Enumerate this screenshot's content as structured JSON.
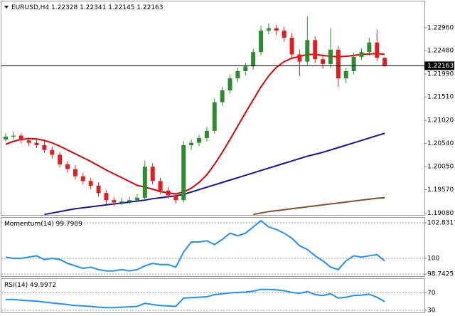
{
  "chart_data": [
    {
      "type": "candlestick",
      "title": "EURUSD,H4",
      "up_color": "#2e8b2e",
      "down_color": "#e02020",
      "open": [
        1.2062,
        1.2068,
        1.207,
        1.206,
        1.2055,
        1.205,
        1.204,
        1.203,
        1.201,
        1.2,
        1.1985,
        1.1975,
        1.1965,
        1.195,
        1.1935,
        1.193,
        1.1932,
        1.1935,
        1.194,
        1.2005,
        1.1975,
        1.1955,
        1.1945,
        1.1935,
        1.205,
        1.2055,
        1.2065,
        1.208,
        1.214,
        1.2165,
        1.219,
        1.2205,
        1.2215,
        1.2245,
        1.229,
        1.2295,
        1.229,
        1.2275,
        1.224,
        1.2225,
        1.227,
        1.223,
        1.222,
        1.225,
        1.219,
        1.2205,
        1.2235,
        1.2245,
        1.2265,
        1.22328
      ],
      "high": [
        1.2075,
        1.2078,
        1.2075,
        1.2066,
        1.2063,
        1.2058,
        1.2047,
        1.2036,
        1.2017,
        1.2008,
        1.1992,
        1.1982,
        1.1972,
        1.1956,
        1.1941,
        1.194,
        1.1942,
        1.1948,
        1.2018,
        1.2012,
        1.1982,
        1.1962,
        1.195,
        1.2058,
        1.2062,
        1.2072,
        1.2088,
        1.2148,
        1.2172,
        1.2198,
        1.2212,
        1.2222,
        1.2252,
        1.23,
        1.2305,
        1.2302,
        1.2298,
        1.2285,
        1.225,
        1.232,
        1.2278,
        1.2238,
        1.2295,
        1.2258,
        1.2212,
        1.2243,
        1.2253,
        1.2275,
        1.2292,
        1.22341
      ],
      "low": [
        1.2058,
        1.2062,
        1.2054,
        1.2048,
        1.2044,
        1.2034,
        1.2022,
        1.2003,
        1.1992,
        1.1978,
        1.1968,
        1.1957,
        1.1942,
        1.1926,
        1.1922,
        1.1925,
        1.1927,
        1.193,
        1.1936,
        1.1968,
        1.1948,
        1.1938,
        1.1928,
        1.193,
        1.204,
        1.2048,
        1.2058,
        1.2074,
        1.2132,
        1.2158,
        1.2182,
        1.2196,
        1.2208,
        1.2238,
        1.2282,
        1.228,
        1.2266,
        1.2232,
        1.2195,
        1.2218,
        1.2222,
        1.221,
        1.2212,
        1.2172,
        1.218,
        1.2198,
        1.2228,
        1.2238,
        1.2226,
        1.22145
      ],
      "close": [
        1.2068,
        1.207,
        1.206,
        1.2055,
        1.205,
        1.204,
        1.203,
        1.201,
        1.2,
        1.1985,
        1.1975,
        1.1965,
        1.195,
        1.1935,
        1.193,
        1.1932,
        1.1935,
        1.194,
        1.2005,
        1.1975,
        1.1955,
        1.1945,
        1.1935,
        1.205,
        1.2055,
        1.2065,
        1.208,
        1.214,
        1.2165,
        1.219,
        1.2205,
        1.2215,
        1.2245,
        1.229,
        1.2295,
        1.229,
        1.2275,
        1.224,
        1.2225,
        1.227,
        1.223,
        1.222,
        1.225,
        1.219,
        1.2205,
        1.2235,
        1.2245,
        1.2265,
        1.2233,
        1.22163
      ],
      "lines": [
        {
          "color": "#e00000",
          "values": [
            1.2052,
            1.2058,
            1.2062,
            1.2064,
            1.2063,
            1.206,
            1.2055,
            1.2048,
            1.204,
            1.2032,
            1.2024,
            1.2016,
            1.2007,
            1.1998,
            1.199,
            1.1982,
            1.1974,
            1.1966,
            1.1962,
            1.1958,
            1.1953,
            1.195,
            1.1948,
            1.1952,
            1.196,
            1.1972,
            1.1988,
            1.201,
            1.2035,
            1.2062,
            1.209,
            1.2118,
            1.2145,
            1.2172,
            1.2195,
            1.2213,
            1.2225,
            1.2232,
            1.2236,
            1.224,
            1.224,
            1.2238,
            1.2236,
            1.2235,
            1.2236,
            1.2238,
            1.224,
            1.2241,
            1.2242,
            1.224
          ]
        },
        {
          "color": "#1414a0",
          "values": [
            null,
            null,
            null,
            null,
            null,
            1.1905,
            1.1908,
            1.1911,
            1.1914,
            1.1917,
            1.1919,
            1.1921,
            1.1923,
            1.1925,
            1.1927,
            1.1929,
            1.1931,
            1.1933,
            1.1935,
            1.1938,
            1.194,
            1.1942,
            1.1944,
            1.1947,
            1.1952,
            1.1957,
            1.1962,
            1.1967,
            1.1972,
            1.1977,
            1.1982,
            1.1987,
            1.1992,
            1.1997,
            1.2002,
            1.2007,
            1.2012,
            1.2017,
            1.2022,
            1.2027,
            1.2031,
            1.2035,
            1.204,
            1.2045,
            1.205,
            1.2055,
            1.206,
            1.2065,
            1.207,
            1.2075
          ]
        },
        {
          "color": "#8b4a2b",
          "values": [
            null,
            null,
            null,
            null,
            null,
            null,
            null,
            null,
            null,
            null,
            null,
            null,
            null,
            null,
            null,
            null,
            null,
            null,
            null,
            null,
            null,
            null,
            null,
            null,
            null,
            null,
            null,
            null,
            null,
            null,
            null,
            null,
            1.1905,
            1.1908,
            1.1911,
            1.1913,
            1.1915,
            1.1917,
            1.1919,
            1.1921,
            1.1923,
            1.1925,
            1.1927,
            1.1929,
            1.1931,
            1.1933,
            1.1935,
            1.1937,
            1.1939,
            1.194
          ]
        }
      ],
      "ylim": [
        1.1904,
        1.2351
      ],
      "yticks": [
        {
          "value": 1.2296,
          "label": "1.22960"
        },
        {
          "value": 1.2248,
          "label": "1.22480"
        },
        {
          "value": 1.2199,
          "label": "1.21990"
        },
        {
          "value": 1.2151,
          "label": "1.21510"
        },
        {
          "value": 1.2102,
          "label": "1.21020"
        },
        {
          "value": 1.2054,
          "label": "1.20540"
        },
        {
          "value": 1.2005,
          "label": "1.20050"
        },
        {
          "value": 1.1957,
          "label": "1.19570"
        },
        {
          "value": 1.1908,
          "label": "1.19080"
        }
      ]
    },
    {
      "type": "oscillator",
      "title": "Momentum(14)",
      "color": "#1e90ff",
      "level_lines": true,
      "values": [
        100.1,
        100.0,
        100.0,
        100.1,
        100.2,
        99.9,
        100.0,
        99.9,
        99.6,
        99.4,
        99.2,
        99.3,
        99.1,
        99.0,
        99.0,
        99.1,
        99.0,
        99.1,
        99.4,
        99.6,
        99.5,
        99.5,
        99.3,
        100.5,
        101.3,
        101.3,
        101.4,
        101.1,
        101.5,
        102.0,
        101.8,
        102.0,
        102.5,
        103.0,
        102.5,
        102.3,
        102.0,
        101.6,
        101.0,
        100.7,
        100.2,
        99.8,
        99.3,
        99.1,
        99.8,
        100.2,
        100.1,
        100.2,
        100.3,
        99.7909
      ],
      "ylim": [
        98.58,
        103.23
      ],
      "yticks": [
        102.8317,
        100,
        98.7425
      ]
    },
    {
      "type": "oscillator",
      "title": "RSI(14)",
      "color": "#1e90ff",
      "level_lines": true,
      "values": [
        55,
        55,
        53,
        52,
        51,
        49,
        47,
        45,
        43,
        41,
        40,
        39,
        37,
        36,
        36,
        37,
        38,
        39,
        46,
        43,
        41,
        40,
        39,
        58,
        59,
        60,
        61,
        66,
        68,
        70,
        71,
        72,
        74,
        78,
        78,
        77,
        75,
        71,
        69,
        73,
        66,
        64,
        68,
        58,
        60,
        64,
        65,
        67,
        60,
        49.9972
      ],
      "ylim": [
        25,
        102
      ],
      "yticks": [
        70,
        30
      ]
    }
  ]
}
